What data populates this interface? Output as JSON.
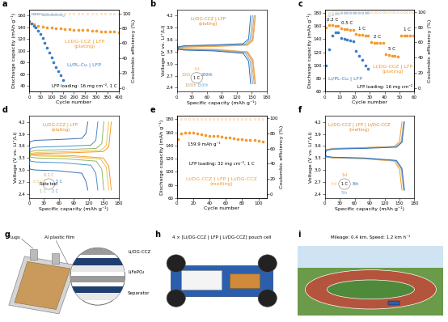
{
  "chart_data": [
    {
      "panel": "a",
      "type": "cycling",
      "x_label": "Cycle number",
      "y_label": "Discharge capacity (mAh g⁻¹)",
      "y2_label": "Coulombic efficiency (%)",
      "xlim": [
        0,
        400
      ],
      "xticks": [
        0,
        50,
        100,
        150,
        200,
        250,
        300,
        350,
        400
      ],
      "ylim": [
        30,
        170
      ],
      "yticks": [
        40,
        60,
        80,
        100,
        120,
        140,
        160
      ],
      "y2lim": [
        -5,
        105
      ],
      "y2ticks": [
        0,
        20,
        40,
        60,
        80,
        100
      ],
      "annotations": [
        "LFP loading: 16 mg cm⁻², 1 C"
      ],
      "series": [
        {
          "name": "Li/DG-CCZ | LFP\n(plating)",
          "color": "#f39a2e",
          "marker": "circle",
          "line_style": "none",
          "x": [
            1,
            20,
            40,
            60,
            80,
            100,
            120,
            140,
            160,
            180,
            200,
            220,
            240,
            260,
            280,
            300,
            320,
            340,
            360,
            380,
            400
          ],
          "values": [
            147,
            145,
            143,
            141,
            140,
            139,
            138,
            138,
            137,
            137,
            136,
            136,
            135,
            135,
            134,
            134,
            133,
            133,
            132,
            132,
            131
          ],
          "ce": [
            97.5,
            99.6,
            99.7,
            99.6,
            99.7,
            99.6,
            99.7,
            99.6,
            99.7,
            99.6,
            99.7,
            99.6,
            99.7,
            99.6,
            99.7,
            99.6,
            99.7,
            99.6,
            99.7,
            99.6,
            99.7
          ]
        },
        {
          "name": "Li/PL-Cu | LFP",
          "color": "#3b7dc4",
          "marker": "circle",
          "line_style": "none",
          "x": [
            1,
            10,
            20,
            30,
            40,
            50,
            60,
            70,
            80,
            90,
            100,
            110,
            120,
            130,
            140,
            150
          ],
          "values": [
            150,
            147,
            143,
            139,
            134,
            128,
            121,
            113,
            105,
            97,
            89,
            80,
            72,
            65,
            58,
            50
          ],
          "ce": [
            96.5,
            99.0,
            99.2,
            99.1,
            99.0,
            99.1,
            98.9,
            98.8,
            98.9,
            98.7,
            98.6,
            98.5,
            98.4,
            98.2,
            98.0,
            97.8
          ]
        }
      ]
    },
    {
      "panel": "b",
      "type": "curves",
      "x_label": "Specific capacity (mAh g⁻¹)",
      "y_label": "Voltage (V vs. Li⁺/Li)",
      "xlim": [
        0,
        180
      ],
      "xticks": [
        0,
        30,
        60,
        90,
        120,
        150,
        180
      ],
      "ylim": [
        2.3,
        4.35
      ],
      "yticks": [
        2.4,
        2.7,
        3.0,
        3.3,
        3.6,
        3.9,
        4.2
      ],
      "annotations": [
        "Li/DG-CCZ | LFP\n(plating)",
        "1 C"
      ],
      "series": [
        {
          "name": "1st",
          "color": "#f7b267",
          "x": [
            0,
            3,
            16,
            79,
            142,
            153,
            158
          ],
          "charge": [
            3.25,
            3.38,
            3.41,
            3.43,
            3.46,
            3.58,
            4.2
          ],
          "discharge": [
            3.5,
            3.4,
            3.38,
            3.36,
            3.3,
            3.1,
            2.5
          ]
        },
        {
          "name": "50th",
          "color": "#e8a04a",
          "x": [
            0,
            3,
            16,
            79,
            141,
            152,
            157
          ],
          "charge": [
            3.26,
            3.39,
            3.42,
            3.44,
            3.47,
            3.59,
            4.2
          ],
          "discharge": [
            3.49,
            3.39,
            3.37,
            3.35,
            3.29,
            3.09,
            2.5
          ]
        },
        {
          "name": "100th",
          "color": "#c9a66b",
          "x": [
            0,
            3,
            16,
            78,
            140,
            150,
            155
          ],
          "charge": [
            3.27,
            3.4,
            3.43,
            3.45,
            3.48,
            3.6,
            4.2
          ],
          "discharge": [
            3.48,
            3.38,
            3.36,
            3.34,
            3.28,
            3.08,
            2.5
          ]
        },
        {
          "name": "150th",
          "color": "#6fa8dc",
          "x": [
            0,
            3,
            15,
            76,
            137,
            147,
            152
          ],
          "charge": [
            3.28,
            3.41,
            3.44,
            3.46,
            3.49,
            3.61,
            4.2
          ],
          "discharge": [
            3.47,
            3.37,
            3.35,
            3.33,
            3.27,
            3.07,
            2.5
          ]
        },
        {
          "name": "200th",
          "color": "#2f6db5",
          "x": [
            0,
            3,
            15,
            74,
            133,
            144,
            148
          ],
          "charge": [
            3.29,
            3.42,
            3.45,
            3.47,
            3.5,
            3.62,
            4.2
          ],
          "discharge": [
            3.46,
            3.36,
            3.34,
            3.32,
            3.26,
            3.06,
            2.5
          ]
        }
      ]
    },
    {
      "panel": "c",
      "type": "cycling",
      "x_label": "Cycle number",
      "y_label": "Discharge capacity (mAh g⁻¹)",
      "y2_label": "Coulombic efficiency (%)",
      "xlim": [
        0,
        60
      ],
      "xticks": [
        0,
        10,
        20,
        30,
        40,
        50,
        60
      ],
      "ylim": [
        60,
        185
      ],
      "yticks": [
        60,
        80,
        100,
        120,
        140,
        160,
        180
      ],
      "y2lim": [
        -5,
        103
      ],
      "y2ticks": [
        0,
        20,
        40,
        60,
        80,
        100
      ],
      "annotations": [
        "LFP loading: 16 mg cm⁻²"
      ],
      "segment_labels": [
        "0.2 C",
        "0.5 C",
        "1 C",
        "2 C",
        "5 C",
        "1 C"
      ],
      "series": [
        {
          "name": "Li/DG-CCZ | LFP\n(plating)",
          "color": "#f39a2e",
          "marker": "circle",
          "line_style": "none",
          "x": [
            1,
            3,
            5,
            7,
            9,
            11,
            13,
            15,
            17,
            19,
            21,
            23,
            25,
            27,
            29,
            31,
            33,
            35,
            37,
            39,
            41,
            43,
            45,
            47,
            49,
            51,
            53,
            55,
            57,
            59
          ],
          "values": [
            158,
            161,
            161,
            160,
            160,
            156,
            155,
            155,
            154,
            154,
            148,
            147,
            147,
            146,
            146,
            136,
            135,
            135,
            134,
            134,
            117,
            116,
            115,
            115,
            114,
            146,
            146,
            145,
            145,
            145
          ],
          "ce": [
            95.0,
            99.2,
            99.4,
            99.5,
            99.5,
            99.4,
            99.5,
            99.5,
            99.5,
            99.5,
            99.5,
            99.6,
            99.6,
            99.6,
            99.6,
            99.7,
            99.7,
            99.7,
            99.7,
            99.7,
            99.8,
            99.8,
            99.8,
            99.8,
            99.8,
            99.5,
            99.6,
            99.6,
            99.6,
            99.6
          ]
        },
        {
          "name": "Li/PL-Cu | LFP",
          "color": "#3b7dc4",
          "marker": "circle",
          "line_style": "none",
          "x": [
            1,
            3,
            5,
            7,
            9,
            11,
            13,
            15,
            17,
            19,
            21,
            23,
            25,
            27,
            29
          ],
          "values": [
            100,
            125,
            145,
            150,
            150,
            142,
            140,
            139,
            138,
            137,
            122,
            115,
            108,
            100,
            95
          ],
          "ce": [
            88.0,
            95.0,
            97.0,
            97.8,
            98.0,
            98.3,
            98.5,
            98.5,
            98.6,
            98.6,
            98.8,
            98.8,
            98.7,
            98.7,
            98.6
          ]
        }
      ]
    },
    {
      "panel": "d",
      "type": "curves",
      "x_label": "Specific capacity (mAh g⁻¹)",
      "y_label": "Voltage (V vs. Li⁺/Li)",
      "xlim": [
        0,
        180
      ],
      "xticks": [
        0,
        30,
        60,
        90,
        120,
        150,
        180
      ],
      "ylim": [
        2.3,
        4.35
      ],
      "yticks": [
        2.4,
        2.7,
        3.0,
        3.3,
        3.6,
        3.9,
        4.2
      ],
      "annotations": [
        "Li/DG-CCZ | LFP\n(plating)",
        "Rate test"
      ],
      "series": [
        {
          "name": "0.2 C",
          "color": "#f39a2e",
          "x": [
            0,
            3,
            17,
            83,
            149,
            160,
            165
          ],
          "charge": [
            3.25,
            3.38,
            3.41,
            3.43,
            3.46,
            3.58,
            4.2
          ],
          "discharge": [
            3.5,
            3.4,
            3.38,
            3.36,
            3.3,
            3.1,
            2.5
          ]
        },
        {
          "name": "0.5 C",
          "color": "#f2c14e",
          "x": [
            0,
            3,
            16,
            80,
            144,
            155,
            160
          ],
          "charge": [
            3.28,
            3.41,
            3.44,
            3.46,
            3.49,
            3.61,
            4.2
          ],
          "discharge": [
            3.47,
            3.37,
            3.35,
            3.33,
            3.27,
            3.07,
            2.5
          ]
        },
        {
          "name": "1 C",
          "color": "#8fb863",
          "x": [
            0,
            3,
            15,
            75,
            135,
            146,
            150
          ],
          "charge": [
            3.33,
            3.46,
            3.49,
            3.51,
            3.54,
            3.66,
            4.2
          ],
          "discharge": [
            3.42,
            3.32,
            3.3,
            3.28,
            3.22,
            3.02,
            2.5
          ]
        },
        {
          "name": "2 C",
          "color": "#4a90c9",
          "x": [
            0,
            3,
            14,
            69,
            124,
            134,
            138
          ],
          "charge": [
            3.41,
            3.54,
            3.57,
            3.59,
            3.62,
            3.74,
            4.2
          ],
          "discharge": [
            3.32,
            3.22,
            3.2,
            3.18,
            3.12,
            2.92,
            2.5
          ]
        },
        {
          "name": "5 C",
          "color": "#3f6fb0",
          "x": [
            0,
            2,
            12,
            59,
            106,
            114,
            118
          ],
          "charge": [
            3.58,
            3.71,
            3.74,
            3.76,
            3.79,
            3.91,
            4.2
          ],
          "discharge": [
            3.12,
            3.02,
            3.0,
            2.98,
            2.92,
            2.72,
            2.5
          ]
        }
      ]
    },
    {
      "panel": "e",
      "type": "cycling",
      "x_label": "Cycle number",
      "y_label": "Discharge capacity (mAh g⁻¹)",
      "y2_label": "Coulombic efficiency (%)",
      "xlim": [
        0,
        110
      ],
      "xticks": [
        0,
        20,
        40,
        60,
        80,
        100
      ],
      "ylim": [
        60,
        185
      ],
      "yticks": [
        60,
        80,
        100,
        120,
        140,
        160,
        180
      ],
      "y2lim": [
        -5,
        103
      ],
      "y2ticks": [
        0,
        20,
        40,
        60,
        80,
        100
      ],
      "annotations": [
        "159.9 mAh g⁻¹",
        "LFP loading: 32 mg cm⁻², 1 C"
      ],
      "series": [
        {
          "name": "Li/DG-CCZ | LFP | Li/DG-CCZ\n(melting)",
          "color": "#f39a2e",
          "marker": "circle",
          "line_style": "none",
          "x": [
            1,
            5,
            10,
            15,
            20,
            25,
            30,
            35,
            40,
            45,
            50,
            55,
            60,
            65,
            70,
            75,
            80,
            85,
            90,
            95,
            100,
            105
          ],
          "values": [
            150,
            158,
            159,
            160,
            159,
            158,
            157,
            156,
            155,
            155,
            154,
            153,
            152,
            152,
            151,
            150,
            150,
            149,
            148,
            148,
            147,
            146
          ],
          "ce": [
            92.0,
            99.0,
            99.3,
            99.4,
            99.4,
            99.5,
            99.5,
            99.5,
            99.5,
            99.5,
            99.5,
            99.5,
            99.5,
            99.5,
            99.5,
            99.5,
            99.5,
            99.5,
            99.5,
            99.5,
            99.5,
            99.5
          ]
        }
      ]
    },
    {
      "panel": "f",
      "type": "curves",
      "x_label": "Specific capacity (mAh g⁻¹)",
      "y_label": "Voltage (V vs. Li⁺/Li)",
      "xlim": [
        0,
        180
      ],
      "xticks": [
        0,
        30,
        60,
        90,
        120,
        150,
        180
      ],
      "ylim": [
        2.3,
        4.35
      ],
      "yticks": [
        2.4,
        2.7,
        3.0,
        3.3,
        3.6,
        3.9,
        4.2
      ],
      "annotations": [
        "Li/DG-CCZ | LFP | Li/DG-CCZ\n(melting)",
        "1 C"
      ],
      "series": [
        {
          "name": "1st",
          "color": "#f39a2e",
          "x": [
            0,
            3,
            16,
            78,
            140,
            150,
            155
          ],
          "charge": [
            3.38,
            3.51,
            3.54,
            3.56,
            3.59,
            3.71,
            4.2
          ],
          "discharge": [
            3.42,
            3.32,
            3.3,
            3.28,
            3.22,
            3.02,
            2.5
          ]
        },
        {
          "name": "3rd",
          "color": "#f6c26b",
          "x": [
            0,
            3,
            16,
            79,
            142,
            153,
            158
          ],
          "charge": [
            3.37,
            3.5,
            3.53,
            3.55,
            3.58,
            3.7,
            4.2
          ],
          "discharge": [
            3.43,
            3.33,
            3.31,
            3.29,
            3.23,
            3.03,
            2.5
          ]
        },
        {
          "name": "5th",
          "color": "#6fa8dc",
          "x": [
            0,
            3,
            16,
            80,
            143,
            154,
            159
          ],
          "charge": [
            3.37,
            3.5,
            3.53,
            3.55,
            3.58,
            3.7,
            4.2
          ],
          "discharge": [
            3.43,
            3.33,
            3.31,
            3.29,
            3.23,
            3.03,
            2.5
          ]
        },
        {
          "name": "8th",
          "color": "#2f6db5",
          "x": [
            0,
            3,
            16,
            80,
            144,
            155,
            160
          ],
          "charge": [
            3.36,
            3.49,
            3.52,
            3.54,
            3.57,
            3.69,
            4.2
          ],
          "discharge": [
            3.44,
            3.34,
            3.32,
            3.3,
            3.24,
            3.04,
            2.5
          ]
        }
      ]
    },
    {
      "panel": "g",
      "type": "diagram",
      "labels": {
        "lugs": "Lugs",
        "film": "Al plastic film",
        "anode": "Li/DG-CCZ",
        "cathode": "LiFePO₄",
        "separator": "Separator"
      }
    },
    {
      "panel": "h",
      "type": "diagram",
      "labels": {
        "caption": "4 × [Li/DG-CCZ | LFP | Li/DG-CCZ] pouch cell"
      }
    },
    {
      "panel": "i",
      "type": "diagram",
      "labels": {
        "caption": "Mileage: 0.4 km, Speed: 1.2 km h⁻¹"
      }
    }
  ]
}
